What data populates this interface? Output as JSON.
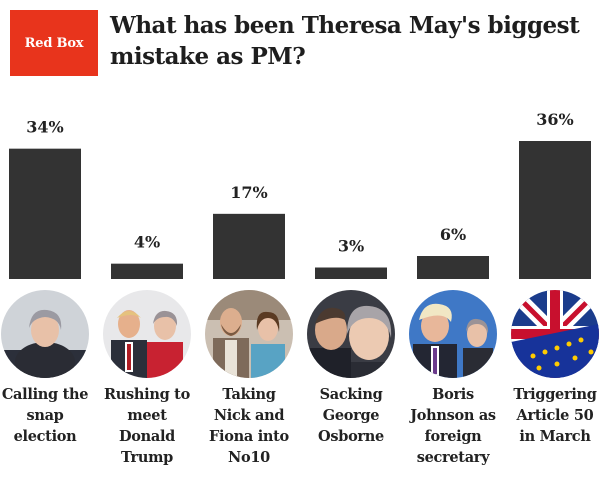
{
  "brand": {
    "logo_text": "Red Box",
    "color": "#e8341c"
  },
  "chart_data": {
    "type": "bar",
    "title": "What has been Theresa May's biggest mistake as PM?",
    "categories": [
      "Calling the snap election",
      "Rushing to meet Donald Trump",
      "Taking Nick and Fiona into No10",
      "Sacking George Osborne",
      "Boris Johnson as foreign secretary",
      "Triggering Article 50 in March"
    ],
    "values": [
      34,
      4,
      17,
      3,
      6,
      36
    ],
    "value_labels": [
      "34%",
      "4%",
      "17%",
      "3%",
      "6%",
      "36%"
    ],
    "unit": "%",
    "ylim": [
      0,
      36
    ],
    "grid": false,
    "bar_color": "#333333",
    "xlabel": "",
    "ylabel": ""
  },
  "captions": [
    [
      "Calling the",
      "snap",
      "election"
    ],
    [
      "Rushing to",
      "meet",
      "Donald",
      "Trump"
    ],
    [
      "Taking",
      "Nick and",
      "Fiona into",
      "No10"
    ],
    [
      "Sacking",
      "George",
      "Osborne"
    ],
    [
      "Boris",
      "Johnson as",
      "foreign",
      "secretary"
    ],
    [
      "Triggering",
      "Article 50",
      "in March"
    ]
  ],
  "photos": [
    "theresa-may-photo",
    "trump-and-may-photo",
    "nick-and-fiona-photo",
    "osborne-and-may-photo",
    "boris-and-may-photo",
    "union-jack-eu-flag-photo"
  ]
}
